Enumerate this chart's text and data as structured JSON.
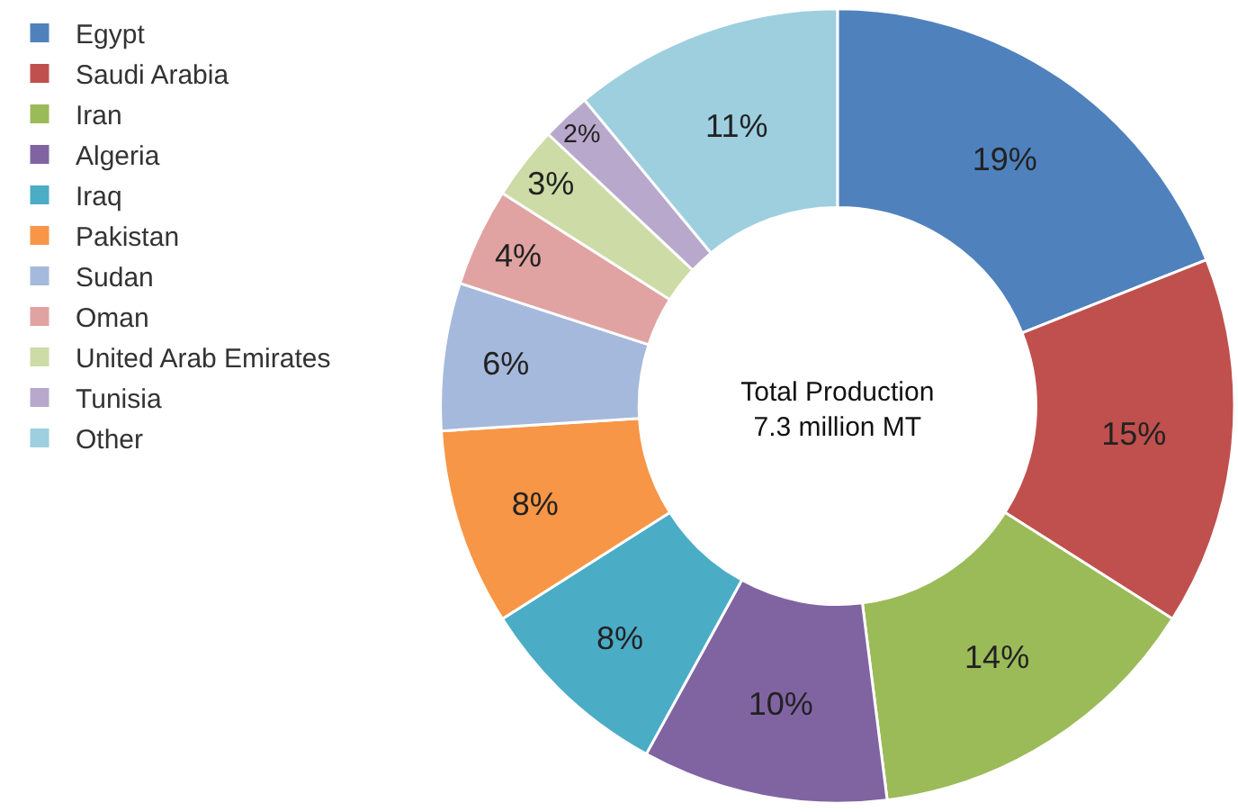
{
  "chart_data": {
    "type": "donut",
    "categories": [
      "Egypt",
      "Saudi Arabia",
      "Iran",
      "Algeria",
      "Iraq",
      "Pakistan",
      "Sudan",
      "Oman",
      "United Arab Emirates",
      "Tunisia",
      "Other"
    ],
    "values": [
      19,
      15,
      14,
      10,
      8,
      8,
      6,
      4,
      3,
      2,
      11
    ],
    "colors": [
      "#4f81bd",
      "#c0504d",
      "#9bbb59",
      "#8064a2",
      "#4bacc6",
      "#f79646",
      "#a5b9dc",
      "#e0a3a2",
      "#cddba6",
      "#b8a8cc",
      "#9dcfdf"
    ],
    "value_labels": [
      "19%",
      "15%",
      "14%",
      "10%",
      "8%",
      "8%",
      "6%",
      "4%",
      "3%",
      "2%",
      "11%"
    ],
    "annotations": [
      "Total Production\n7.3 million MT"
    ],
    "legend": "left"
  }
}
